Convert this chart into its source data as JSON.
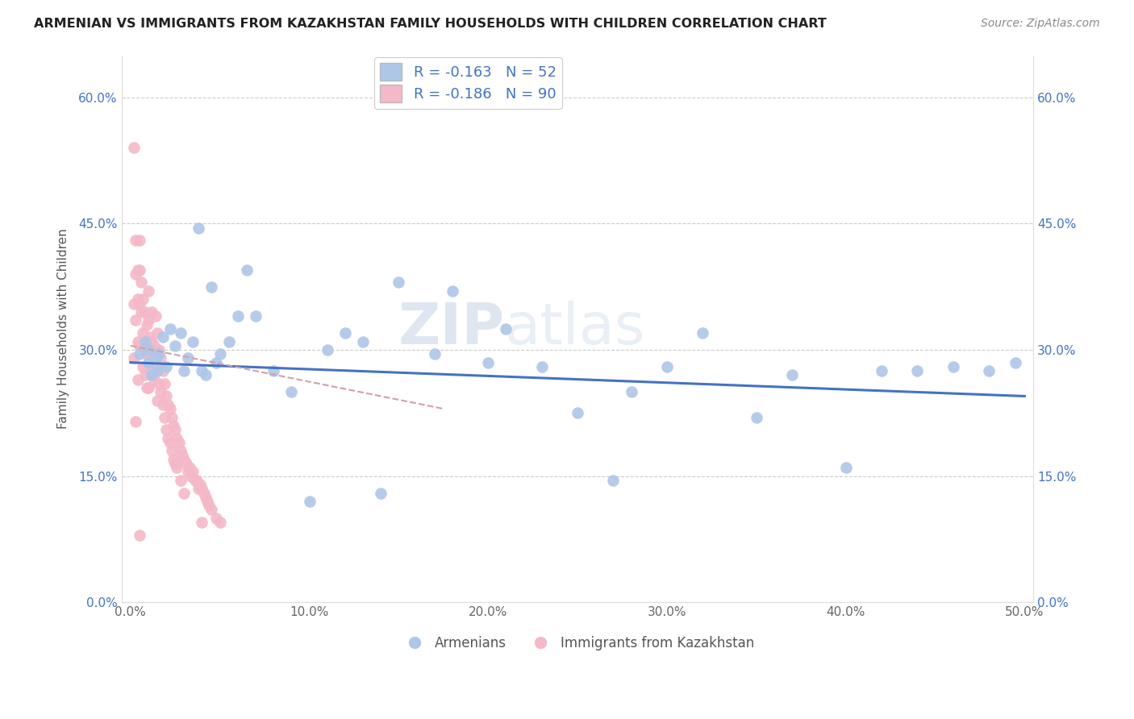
{
  "title": "ARMENIAN VS IMMIGRANTS FROM KAZAKHSTAN FAMILY HOUSEHOLDS WITH CHILDREN CORRELATION CHART",
  "source": "Source: ZipAtlas.com",
  "ylabel": "Family Households with Children",
  "xlabel": "",
  "xlim": [
    -0.005,
    0.505
  ],
  "ylim": [
    0.0,
    0.65
  ],
  "xticks": [
    0.0,
    0.1,
    0.2,
    0.3,
    0.4,
    0.5
  ],
  "yticks": [
    0.0,
    0.15,
    0.3,
    0.45,
    0.6
  ],
  "xticklabels": [
    "0.0%",
    "10.0%",
    "20.0%",
    "30.0%",
    "40.0%",
    "50.0%"
  ],
  "yticklabels": [
    "0.0%",
    "15.0%",
    "30.0%",
    "45.0%",
    "60.0%"
  ],
  "blue_R": -0.163,
  "blue_N": 52,
  "pink_R": -0.186,
  "pink_N": 90,
  "blue_color": "#aec6e8",
  "pink_color": "#f4b8c8",
  "blue_line_color": "#4472c4",
  "pink_line_color": "#d0a0a8",
  "watermark_zip": "ZIP",
  "watermark_atlas": "atlas",
  "legend_label_blue": "Armenians",
  "legend_label_pink": "Immigrants from Kazakhstan",
  "blue_scatter_x": [
    0.005,
    0.008,
    0.01,
    0.01,
    0.012,
    0.014,
    0.015,
    0.016,
    0.018,
    0.02,
    0.022,
    0.025,
    0.028,
    0.03,
    0.032,
    0.035,
    0.038,
    0.04,
    0.042,
    0.045,
    0.048,
    0.05,
    0.055,
    0.06,
    0.065,
    0.07,
    0.08,
    0.09,
    0.1,
    0.11,
    0.12,
    0.13,
    0.14,
    0.15,
    0.17,
    0.18,
    0.2,
    0.21,
    0.23,
    0.25,
    0.27,
    0.28,
    0.3,
    0.32,
    0.35,
    0.37,
    0.4,
    0.42,
    0.44,
    0.46,
    0.48,
    0.495
  ],
  "blue_scatter_y": [
    0.295,
    0.31,
    0.285,
    0.3,
    0.27,
    0.29,
    0.275,
    0.295,
    0.315,
    0.28,
    0.325,
    0.305,
    0.32,
    0.275,
    0.29,
    0.31,
    0.445,
    0.275,
    0.27,
    0.375,
    0.285,
    0.295,
    0.31,
    0.34,
    0.395,
    0.34,
    0.275,
    0.25,
    0.12,
    0.3,
    0.32,
    0.31,
    0.13,
    0.38,
    0.295,
    0.37,
    0.285,
    0.325,
    0.28,
    0.225,
    0.145,
    0.25,
    0.28,
    0.32,
    0.22,
    0.27,
    0.16,
    0.275,
    0.275,
    0.28,
    0.275,
    0.285
  ],
  "pink_scatter_x": [
    0.002,
    0.002,
    0.002,
    0.003,
    0.003,
    0.003,
    0.003,
    0.004,
    0.004,
    0.004,
    0.004,
    0.005,
    0.005,
    0.005,
    0.005,
    0.005,
    0.006,
    0.006,
    0.006,
    0.007,
    0.007,
    0.007,
    0.008,
    0.008,
    0.008,
    0.009,
    0.009,
    0.009,
    0.01,
    0.01,
    0.01,
    0.01,
    0.011,
    0.011,
    0.012,
    0.012,
    0.012,
    0.013,
    0.013,
    0.014,
    0.014,
    0.015,
    0.015,
    0.015,
    0.016,
    0.016,
    0.017,
    0.017,
    0.018,
    0.018,
    0.019,
    0.019,
    0.02,
    0.02,
    0.021,
    0.021,
    0.022,
    0.022,
    0.023,
    0.023,
    0.024,
    0.024,
    0.025,
    0.025,
    0.026,
    0.026,
    0.027,
    0.028,
    0.028,
    0.029,
    0.03,
    0.03,
    0.031,
    0.032,
    0.033,
    0.034,
    0.035,
    0.036,
    0.037,
    0.038,
    0.039,
    0.04,
    0.04,
    0.041,
    0.042,
    0.043,
    0.044,
    0.045,
    0.048,
    0.05
  ],
  "pink_scatter_y": [
    0.54,
    0.355,
    0.29,
    0.43,
    0.39,
    0.335,
    0.215,
    0.395,
    0.36,
    0.31,
    0.265,
    0.43,
    0.395,
    0.355,
    0.305,
    0.08,
    0.38,
    0.345,
    0.305,
    0.36,
    0.32,
    0.28,
    0.345,
    0.31,
    0.27,
    0.33,
    0.295,
    0.255,
    0.37,
    0.335,
    0.295,
    0.255,
    0.315,
    0.275,
    0.345,
    0.31,
    0.27,
    0.305,
    0.265,
    0.34,
    0.3,
    0.32,
    0.28,
    0.24,
    0.3,
    0.26,
    0.29,
    0.25,
    0.275,
    0.235,
    0.26,
    0.22,
    0.245,
    0.205,
    0.235,
    0.195,
    0.23,
    0.19,
    0.22,
    0.18,
    0.21,
    0.17,
    0.205,
    0.165,
    0.195,
    0.16,
    0.19,
    0.18,
    0.145,
    0.175,
    0.17,
    0.13,
    0.165,
    0.155,
    0.16,
    0.15,
    0.155,
    0.145,
    0.145,
    0.135,
    0.14,
    0.135,
    0.095,
    0.13,
    0.125,
    0.12,
    0.115,
    0.11,
    0.1,
    0.095
  ],
  "blue_trend_x": [
    0.0,
    0.5
  ],
  "blue_trend_y": [
    0.285,
    0.245
  ],
  "pink_trend_x": [
    0.0,
    0.175
  ],
  "pink_trend_y": [
    0.305,
    0.23
  ]
}
